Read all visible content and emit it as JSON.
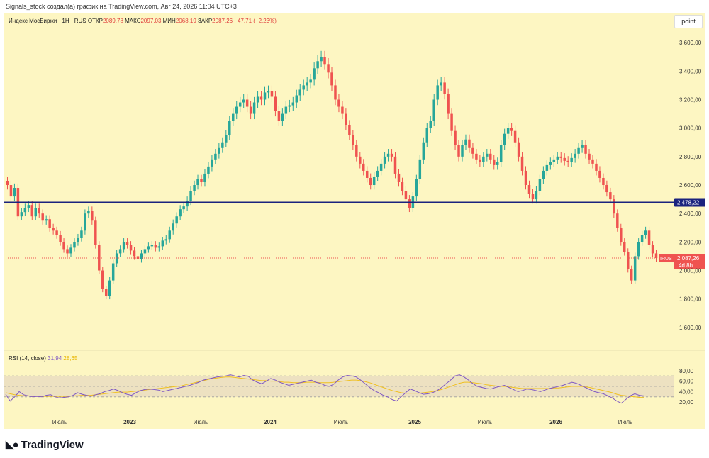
{
  "header_text": "Signals_stock создал(а) график на TradingView.com, Авг 24, 2026 11:04 UTC+3",
  "legend": {
    "symbol": "Индекс МосБиржи · 1Н · RUS",
    "open_label": "ОТКР",
    "open": "2089,78",
    "high_label": "МАКС",
    "high": "2097,03",
    "low_label": "МИН",
    "low": "2068,19",
    "close_label": "ЗАКР",
    "close": "2087,26",
    "change": "−47,71 (−2,23%)"
  },
  "point_button": "point",
  "rsi_legend": {
    "name": "RSI (14, close)",
    "value": "31,94",
    "ma_value": "28,65"
  },
  "price_tag": {
    "symbol": "IRUS",
    "price": "2 087,26",
    "countdown": "4d 8h"
  },
  "hline_tag": "2 478,22",
  "logo_text": "TradingView",
  "colors": {
    "background": "#fdf6c2",
    "up": "#26a69a",
    "down": "#ef5350",
    "hline": "#1a237e",
    "rsi": "#7e57c2",
    "rsi_ma": "#f0c020"
  },
  "chart_data": {
    "type": "candlestick",
    "price_axis_ticks": [
      "3 600,00",
      "3 400,00",
      "3 200,00",
      "3 000,00",
      "2 800,00",
      "2 600,00",
      "2 400,00",
      "2 200,00",
      "2 000,00",
      "1 800,00",
      "1 600,00"
    ],
    "price_range": [
      1460,
      3780
    ],
    "time_axis_labels": [
      "Июль",
      "2023",
      "Июль",
      "2024",
      "Июль",
      "2025",
      "Июль",
      "2026",
      "Июль"
    ],
    "horizontal_line": 2478.22,
    "last_price": 2087.26,
    "close_series": [
      2600,
      2520,
      2580,
      2380,
      2410,
      2440,
      2460,
      2380,
      2440,
      2400,
      2350,
      2360,
      2300,
      2280,
      2250,
      2200,
      2150,
      2120,
      2160,
      2200,
      2230,
      2280,
      2400,
      2420,
      2350,
      2180,
      2000,
      1870,
      1820,
      1930,
      2050,
      2120,
      2150,
      2200,
      2180,
      2140,
      2100,
      2080,
      2120,
      2150,
      2170,
      2180,
      2160,
      2170,
      2210,
      2220,
      2280,
      2330,
      2380,
      2430,
      2450,
      2490,
      2560,
      2600,
      2640,
      2620,
      2680,
      2730,
      2780,
      2820,
      2860,
      2900,
      2950,
      3050,
      3100,
      3150,
      3180,
      3200,
      3150,
      3100,
      3180,
      3220,
      3200,
      3250,
      3260,
      3220,
      3120,
      3050,
      3100,
      3150,
      3160,
      3180,
      3230,
      3270,
      3300,
      3320,
      3340,
      3420,
      3470,
      3500,
      3450,
      3390,
      3300,
      3200,
      3150,
      3100,
      3020,
      2950,
      2880,
      2800,
      2750,
      2700,
      2650,
      2600,
      2660,
      2700,
      2750,
      2800,
      2820,
      2800,
      2680,
      2620,
      2560,
      2500,
      2440,
      2520,
      2640,
      2780,
      2900,
      3000,
      3050,
      3200,
      3300,
      3320,
      3240,
      3100,
      2980,
      2880,
      2800,
      2880,
      2920,
      2860,
      2820,
      2780,
      2760,
      2800,
      2820,
      2780,
      2740,
      2760,
      2880,
      2960,
      3000,
      2980,
      2900,
      2800,
      2700,
      2600,
      2540,
      2500,
      2560,
      2640,
      2700,
      2740,
      2760,
      2780,
      2800,
      2790,
      2770,
      2760,
      2790,
      2820,
      2860,
      2880,
      2820,
      2780,
      2750,
      2700,
      2650,
      2600,
      2550,
      2500,
      2400,
      2300,
      2200,
      2130,
      2010,
      1930,
      2100,
      2200,
      2250,
      2280,
      2180,
      2120,
      2087
    ],
    "rsi": {
      "ylim": [
        0,
        100
      ],
      "levels": [
        70,
        50,
        30
      ],
      "ticks": [
        "80,00",
        "60,00",
        "40,00",
        "20,00"
      ],
      "values": [
        35,
        22,
        30,
        40,
        34,
        32,
        30,
        31,
        30,
        33,
        34,
        30,
        28,
        29,
        30,
        33,
        38,
        35,
        33,
        31,
        34,
        36,
        40,
        42,
        45,
        42,
        38,
        35,
        33,
        38,
        42,
        44,
        45,
        44,
        43,
        40,
        42,
        44,
        46,
        48,
        50,
        52,
        55,
        58,
        62,
        64,
        66,
        68,
        69,
        70,
        72,
        70,
        68,
        71,
        69,
        62,
        58,
        55,
        60,
        65,
        62,
        58,
        55,
        52,
        54,
        56,
        58,
        60,
        62,
        58,
        56,
        52,
        50,
        54,
        62,
        68,
        71,
        70,
        68,
        62,
        55,
        48,
        42,
        38,
        33,
        30,
        25,
        22,
        30,
        38,
        45,
        42,
        38,
        35,
        36,
        38,
        42,
        48,
        55,
        62,
        70,
        72,
        68,
        62,
        55,
        50,
        48,
        46,
        45,
        48,
        50,
        52,
        48,
        44,
        40,
        42,
        45,
        44,
        42,
        40,
        43,
        46,
        48,
        50,
        52,
        55,
        58,
        56,
        52,
        48,
        44,
        40,
        38,
        36,
        32,
        28,
        22,
        18,
        25,
        32,
        36,
        33,
        31.94
      ],
      "ma": [
        38,
        36,
        34,
        33,
        32,
        32,
        31,
        31,
        31,
        31,
        31,
        31,
        31,
        31,
        31,
        32,
        32,
        33,
        33,
        33,
        34,
        35,
        36,
        37,
        38,
        39,
        39,
        39,
        40,
        41,
        42,
        43,
        44,
        45,
        46,
        47,
        48,
        49,
        50,
        51,
        53,
        55,
        57,
        59,
        61,
        63,
        65,
        66,
        67,
        68,
        68,
        67,
        66,
        65,
        64,
        63,
        62,
        61,
        61,
        60,
        60,
        59,
        58,
        58,
        57,
        57,
        57,
        58,
        58,
        58,
        57,
        57,
        57,
        58,
        59,
        60,
        61,
        62,
        62,
        61,
        59,
        57,
        54,
        51,
        48,
        45,
        42,
        40,
        38,
        37,
        37,
        37,
        37,
        38,
        39,
        40,
        42,
        44,
        47,
        50,
        53,
        56,
        58,
        58,
        57,
        56,
        55,
        53,
        52,
        51,
        50,
        50,
        49,
        48,
        47,
        46,
        46,
        46,
        46,
        46,
        46,
        46,
        47,
        47,
        48,
        49,
        50,
        50,
        50,
        49,
        48,
        46,
        44,
        42,
        40,
        38,
        35,
        33,
        32,
        31,
        30,
        29,
        28.65
      ]
    }
  }
}
